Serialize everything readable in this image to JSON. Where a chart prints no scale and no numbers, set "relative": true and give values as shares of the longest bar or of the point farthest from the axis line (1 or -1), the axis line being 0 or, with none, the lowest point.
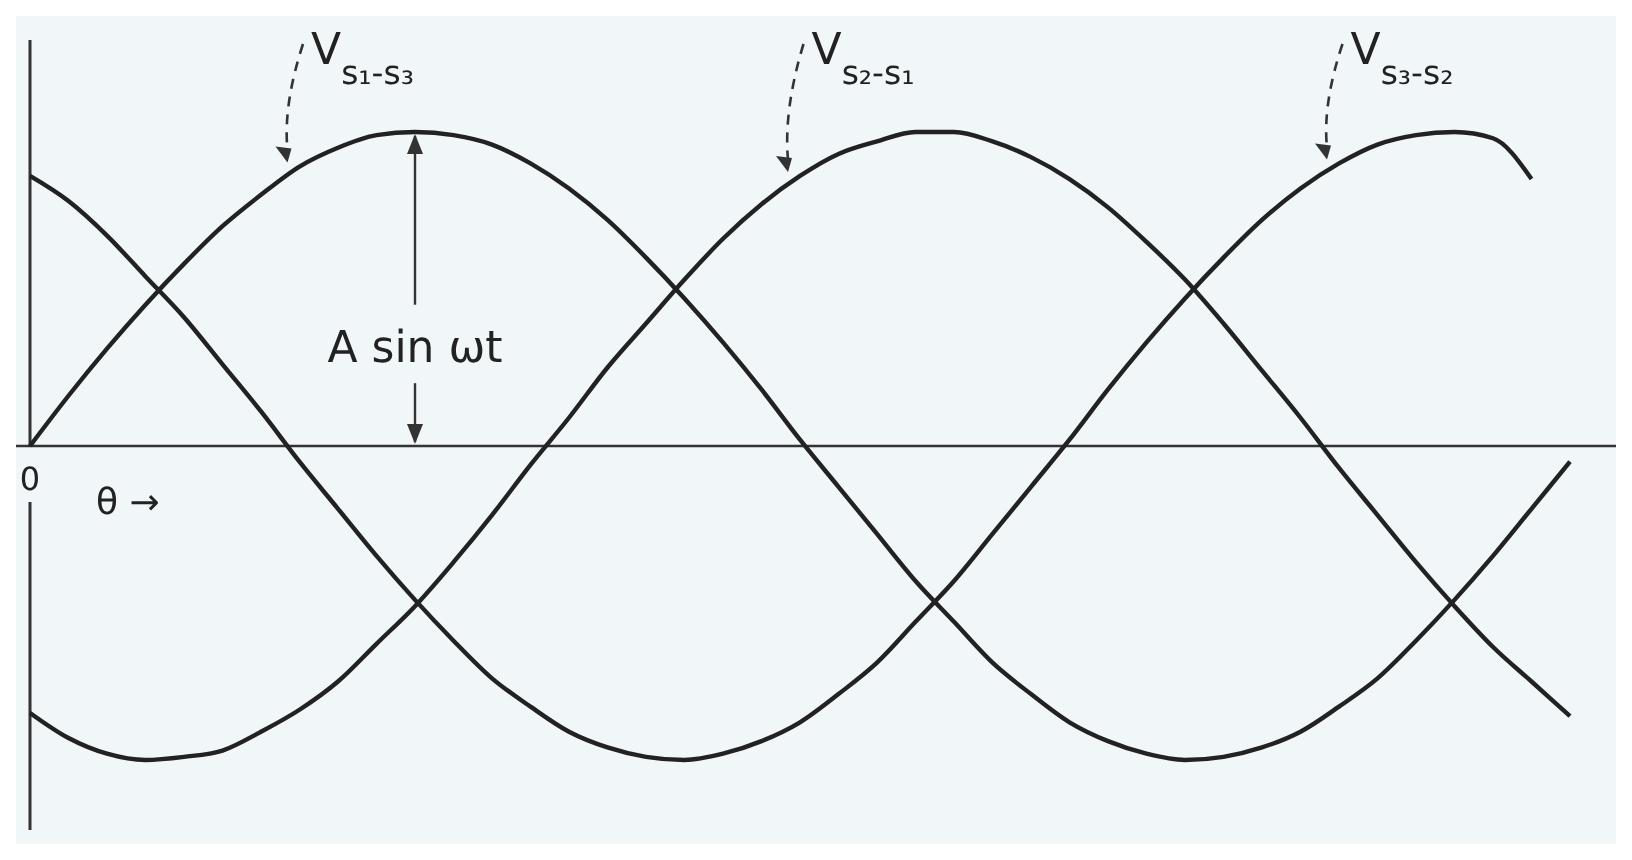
{
  "chart_data": {
    "type": "line",
    "relative": true,
    "marker": "none",
    "line_style": "solid",
    "categories": [
      null,
      null,
      null,
      null,
      null,
      null,
      null,
      null,
      null,
      null,
      null,
      null,
      null,
      null,
      null,
      null,
      null,
      null,
      null,
      null,
      null,
      null,
      null,
      null,
      null,
      null,
      null,
      null,
      null,
      null,
      null,
      null,
      null,
      null,
      null,
      null,
      null,
      null,
      null,
      null,
      null
    ],
    "series": [
      {
        "name": "V$_{s₁-s₃}$",
        "color": "#222222",
        "values": [
          0,
          0.16,
          0.31,
          0.45,
          0.58,
          0.7,
          0.8,
          0.89,
          0.95,
          0.99,
          1,
          0.99,
          0.96,
          0.9,
          0.82,
          0.72,
          0.6,
          0.47,
          0.33,
          0.18,
          0.02,
          -0.13,
          -0.28,
          -0.43,
          -0.56,
          -0.69,
          -0.79,
          -0.88,
          -0.94,
          -0.98,
          -1,
          -0.99,
          -0.96,
          -0.91,
          -0.83,
          -0.74,
          -0.62,
          -0.49,
          -0.35,
          -0.2,
          -0.05
        ]
      },
      {
        "name": "V$_{s₂-s₁}$",
        "color": "#222222",
        "values": [
          -0.85,
          -0.93,
          -0.98,
          -1,
          -0.99,
          -0.97,
          -0.91,
          -0.84,
          -0.75,
          -0.63,
          -0.51,
          -0.37,
          -0.22,
          -0.06,
          0.09,
          0.25,
          0.39,
          0.53,
          0.66,
          0.77,
          0.86,
          0.93,
          0.97,
          1,
          1,
          0.97,
          0.92,
          0.85,
          0.76,
          0.65,
          0.53,
          0.39,
          0.24,
          0.09,
          -0.07,
          -0.22,
          -0.37,
          -0.51,
          -0.64,
          -0.75,
          -0.86
        ]
      },
      {
        "name": "V$_{s₃-s₂}$",
        "color": "#222222",
        "values": [
          0.86,
          0.78,
          0.67,
          0.54,
          0.41,
          0.26,
          0.11,
          -0.05,
          -0.2,
          -0.35,
          -0.49,
          -0.62,
          -0.74,
          -0.83,
          -0.91,
          -0.96,
          -0.99,
          -1,
          -0.98,
          -0.94,
          -0.88,
          -0.79,
          -0.69,
          -0.56,
          -0.43,
          -0.28,
          -0.13,
          0.02,
          0.18,
          0.33,
          0.47,
          0.6,
          0.72,
          0.82,
          0.9,
          0.96,
          0.99,
          1,
          0.98,
          0.85,
          null
        ]
      }
    ],
    "annotations": [
      {
        "text": "A sin ωt",
        "y": 1
      },
      "0",
      "θ →"
    ]
  }
}
